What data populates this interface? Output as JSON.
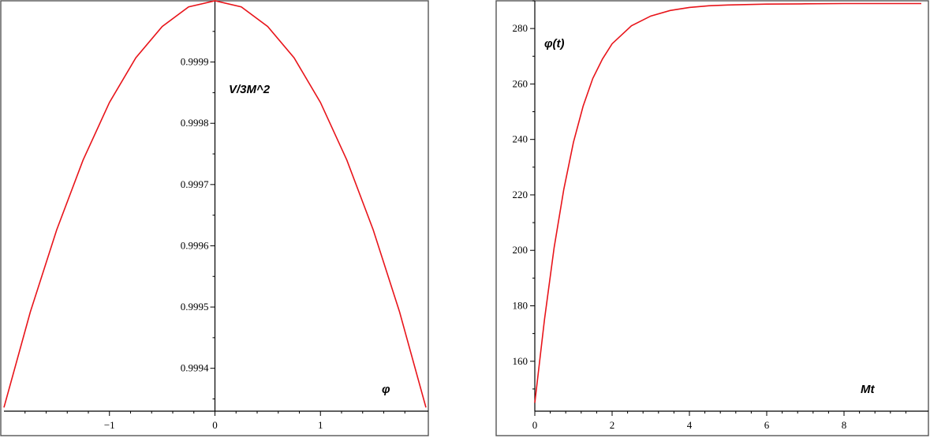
{
  "chart_data": [
    {
      "type": "line",
      "title": "",
      "xlabel": "φ",
      "ylabel": "V/3M^2",
      "xlim": [
        -2.0,
        2.0
      ],
      "ylim": [
        0.99933,
        1.0
      ],
      "x_ticks": [
        -1,
        0,
        1
      ],
      "x_tick_labels": [
        "−1",
        "0",
        "1"
      ],
      "y_ticks": [
        0.9994,
        0.9995,
        0.9996,
        0.9997,
        0.9998,
        0.9999
      ],
      "y_tick_labels": [
        "0.9994",
        "0.9995",
        "0.9996",
        "0.9997",
        "0.9998",
        "0.9999"
      ],
      "series": [
        {
          "color": "#e8141a",
          "x": [
            -2.0,
            -1.75,
            -1.5,
            -1.25,
            -1.0,
            -0.75,
            -0.5,
            -0.25,
            0.0,
            0.25,
            0.5,
            0.75,
            1.0,
            1.25,
            1.5,
            1.75,
            2.0
          ],
          "y": [
            0.999336,
            0.999492,
            0.999626,
            0.99974,
            0.999834,
            0.999907,
            0.999958,
            0.99999,
            1.0,
            0.99999,
            0.999958,
            0.999907,
            0.999834,
            0.99974,
            0.999626,
            0.999492,
            0.999336
          ]
        }
      ],
      "grid": false
    },
    {
      "type": "line",
      "title": "",
      "xlabel": "Mt",
      "ylabel": "φ(t)",
      "xlim": [
        0,
        10
      ],
      "ylim": [
        142,
        290
      ],
      "x_ticks": [
        0,
        2,
        4,
        6,
        8
      ],
      "x_tick_labels": [
        "0",
        "2",
        "4",
        "6",
        "8"
      ],
      "y_ticks": [
        160,
        180,
        200,
        220,
        240,
        260,
        280
      ],
      "y_tick_labels": [
        "160",
        "180",
        "200",
        "220",
        "240",
        "260",
        "280"
      ],
      "series": [
        {
          "color": "#e8141a",
          "x": [
            0.0,
            0.25,
            0.5,
            0.75,
            1.0,
            1.25,
            1.5,
            1.75,
            2.0,
            2.5,
            3.0,
            3.5,
            4.0,
            4.5,
            5.0,
            6.0,
            7.0,
            8.0,
            9.0,
            10.0
          ],
          "y": [
            145,
            175,
            201,
            222,
            239,
            252,
            262,
            269,
            274.5,
            281,
            284.5,
            286.5,
            287.6,
            288.2,
            288.5,
            288.8,
            288.9,
            289.0,
            289.0,
            289.0
          ]
        }
      ],
      "grid": false
    }
  ]
}
